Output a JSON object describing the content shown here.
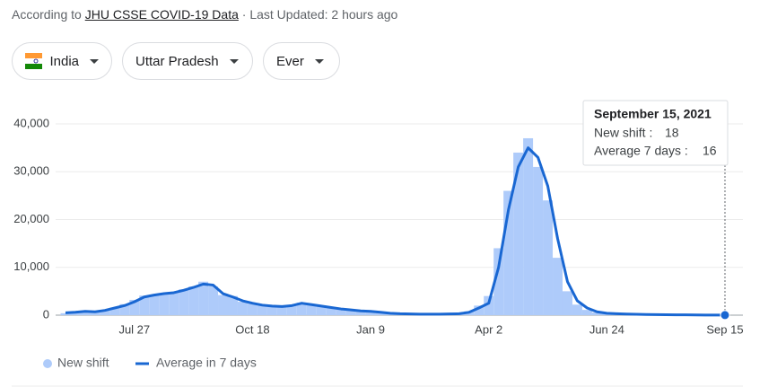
{
  "header": {
    "prefix": "According to",
    "source": "JHU CSSE COVID-19 Data",
    "updated": "· Last Updated: 2 hours ago"
  },
  "filters": [
    "India",
    "Uttar Pradesh",
    "Ever"
  ],
  "chart_data": {
    "type": "bar-line",
    "categories": [
      null,
      null,
      null,
      null,
      null,
      null,
      null,
      "Jul 27",
      null,
      null,
      null,
      null,
      null,
      null,
      null,
      null,
      null,
      null,
      null,
      "Oct 18",
      null,
      null,
      null,
      null,
      null,
      null,
      null,
      null,
      null,
      null,
      null,
      "Jan 9",
      null,
      null,
      null,
      null,
      null,
      null,
      null,
      null,
      null,
      null,
      null,
      "Apr 2",
      null,
      null,
      null,
      null,
      null,
      null,
      null,
      null,
      null,
      null,
      null,
      "Jun 24",
      null,
      null,
      null,
      null,
      null,
      null,
      null,
      null,
      null,
      null,
      null,
      "Sep 15"
    ],
    "series": [
      {
        "name": "New shift",
        "type": "bar",
        "color": "#aecbfa",
        "values": [
          400,
          700,
          900,
          600,
          1100,
          1600,
          2300,
          3200,
          4100,
          4300,
          4600,
          4800,
          5400,
          6000,
          7000,
          6000,
          4200,
          4000,
          2800,
          2400,
          2000,
          1900,
          1700,
          2100,
          2600,
          2100,
          1800,
          1500,
          1200,
          1000,
          900,
          700,
          550,
          380,
          280,
          230,
          190,
          210,
          230,
          260,
          350,
          800,
          2000,
          4000,
          14000,
          26000,
          34000,
          37000,
          31000,
          24000,
          12000,
          5000,
          2200,
          1100,
          550,
          350,
          260,
          210,
          170,
          150,
          120,
          100,
          80,
          60,
          50,
          35,
          25,
          18
        ]
      },
      {
        "name": "Average in 7 days",
        "type": "line",
        "color": "#1967d2",
        "values": [
          500,
          600,
          800,
          700,
          1000,
          1500,
          2000,
          2800,
          3800,
          4200,
          4500,
          4700,
          5200,
          5800,
          6500,
          6300,
          4500,
          3800,
          3000,
          2500,
          2100,
          1900,
          1800,
          2000,
          2500,
          2200,
          1900,
          1600,
          1300,
          1100,
          900,
          800,
          600,
          400,
          300,
          250,
          200,
          200,
          220,
          250,
          300,
          600,
          1500,
          2500,
          10000,
          22000,
          31000,
          35000,
          33000,
          27000,
          16000,
          7000,
          3000,
          1500,
          700,
          400,
          300,
          230,
          180,
          150,
          120,
          100,
          80,
          60,
          45,
          35,
          25,
          16
        ]
      }
    ],
    "ylim": [
      0,
      40000
    ],
    "yticks": [
      0,
      {
        "value": 10000,
        "label": "10,000"
      },
      {
        "value": 20000,
        "label": "20,000"
      },
      {
        "value": 30000,
        "label": "30,000"
      },
      {
        "value": 40000,
        "label": "40,000"
      }
    ],
    "grid": true,
    "tooltip": {
      "title": "September 15, 2021",
      "bar_label": "New shift :",
      "line_label": "Average 7 days :"
    }
  }
}
